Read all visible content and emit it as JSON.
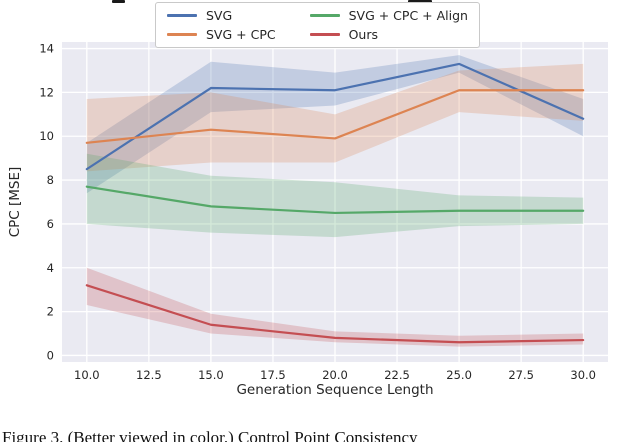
{
  "caption": {
    "text": "Figure 3. (Better viewed in color.) Control Point Consistency"
  },
  "chart_data": {
    "type": "line",
    "title": "",
    "xlabel": "Generation Sequence Length",
    "ylabel": "CPC [MSE]",
    "x": [
      10,
      15,
      20,
      25,
      30
    ],
    "xlim": [
      9,
      31
    ],
    "ylim": [
      -0.3,
      14.3
    ],
    "grid": true,
    "plot_bg": "#eaeaf2",
    "grid_color": "#ffffff",
    "tick_color": "#262626",
    "band_opacity": 0.25,
    "legend_position": "top outside, 2 columns",
    "xticks": [
      {
        "value": 10.0,
        "label": "10.0"
      },
      {
        "value": 12.5,
        "label": "12.5"
      },
      {
        "value": 15.0,
        "label": "15.0"
      },
      {
        "value": 17.5,
        "label": "17.5"
      },
      {
        "value": 20.0,
        "label": "20.0"
      },
      {
        "value": 22.5,
        "label": "22.5"
      },
      {
        "value": 25.0,
        "label": "25.0"
      },
      {
        "value": 27.5,
        "label": "27.5"
      },
      {
        "value": 30.0,
        "label": "30.0"
      }
    ],
    "yticks": [
      {
        "value": 0,
        "label": "0"
      },
      {
        "value": 2,
        "label": "2"
      },
      {
        "value": 4,
        "label": "4"
      },
      {
        "value": 6,
        "label": "6"
      },
      {
        "value": 8,
        "label": "8"
      },
      {
        "value": 10,
        "label": "10"
      },
      {
        "value": 12,
        "label": "12"
      },
      {
        "value": 14,
        "label": "14"
      }
    ],
    "series": [
      {
        "name": "SVG",
        "color": "#4c72b0",
        "values": [
          8.5,
          12.2,
          12.1,
          13.3,
          10.8
        ],
        "band_low": [
          7.4,
          11.1,
          11.4,
          12.9,
          10.0
        ],
        "band_high": [
          9.7,
          13.4,
          12.9,
          13.7,
          11.7
        ]
      },
      {
        "name": "SVG + CPC",
        "color": "#dd8452",
        "values": [
          9.7,
          10.3,
          9.9,
          12.1,
          12.1
        ],
        "band_low": [
          8.4,
          8.8,
          8.8,
          11.1,
          10.7
        ],
        "band_high": [
          11.7,
          12.0,
          11.0,
          13.0,
          13.3
        ]
      },
      {
        "name": "SVG + CPC + Align",
        "color": "#55a868",
        "values": [
          7.7,
          6.8,
          6.5,
          6.6,
          6.6
        ],
        "band_low": [
          6.0,
          5.6,
          5.4,
          5.9,
          6.0
        ],
        "band_high": [
          9.2,
          8.2,
          7.9,
          7.3,
          7.2
        ]
      },
      {
        "name": "Ours",
        "color": "#c44e52",
        "values": [
          3.2,
          1.4,
          0.8,
          0.6,
          0.7
        ],
        "band_low": [
          2.3,
          1.0,
          0.6,
          0.4,
          0.5
        ],
        "band_high": [
          4.0,
          1.9,
          1.1,
          0.9,
          1.0
        ]
      }
    ]
  }
}
